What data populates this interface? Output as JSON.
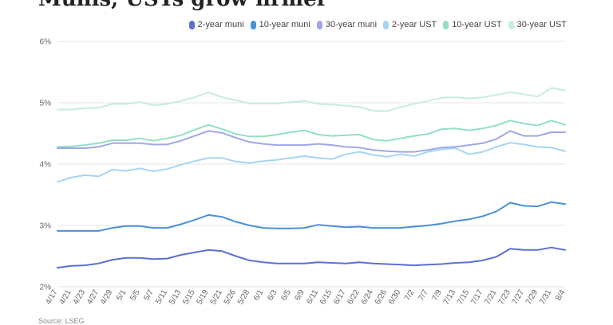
{
  "title": "Munis, USTs grow firmer",
  "source": "Source: LSEG",
  "chart_data": {
    "type": "line",
    "title": "Munis, USTs grow firmer",
    "xlabel": "",
    "ylabel": "",
    "ylim": [
      2,
      6
    ],
    "y_ticks": [
      "2%",
      "3%",
      "4%",
      "5%",
      "6%"
    ],
    "grid": true,
    "legend": "top-right",
    "x_labels": [
      "4/17",
      "4/21",
      "4/23",
      "4/27",
      "4/29",
      "5/1",
      "5/5",
      "5/7",
      "5/11",
      "5/13",
      "5/15",
      "5/19",
      "5/21",
      "5/26",
      "5/28",
      "6/1",
      "6/3",
      "6/5",
      "6/9",
      "6/11",
      "6/15",
      "6/17",
      "6/22",
      "6/24",
      "6/26",
      "6/30",
      "7/2",
      "7/7",
      "7/9",
      "7/13",
      "7/15",
      "7/17",
      "7/21",
      "7/23",
      "7/27",
      "7/29",
      "7/31",
      "8/4"
    ],
    "series": [
      {
        "name": "2-year muni",
        "color": "#5b6fd6",
        "values": [
          2.31,
          2.34,
          2.35,
          2.38,
          2.44,
          2.47,
          2.47,
          2.45,
          2.46,
          2.52,
          2.56,
          2.6,
          2.58,
          2.5,
          2.43,
          2.4,
          2.38,
          2.38,
          2.38,
          2.4,
          2.39,
          2.38,
          2.4,
          2.38,
          2.37,
          2.36,
          2.35,
          2.36,
          2.37,
          2.39,
          2.4,
          2.43,
          2.49,
          2.62,
          2.6,
          2.6,
          2.64,
          2.6
        ]
      },
      {
        "name": "10-year muni",
        "color": "#4a90d9",
        "values": [
          2.91,
          2.91,
          2.91,
          2.91,
          2.96,
          2.99,
          2.99,
          2.96,
          2.96,
          3.02,
          3.09,
          3.17,
          3.14,
          3.06,
          3.0,
          2.96,
          2.95,
          2.95,
          2.96,
          3.01,
          2.99,
          2.97,
          2.98,
          2.96,
          2.96,
          2.96,
          2.98,
          3.0,
          3.03,
          3.07,
          3.1,
          3.15,
          3.23,
          3.37,
          3.32,
          3.31,
          3.38,
          3.35
        ]
      },
      {
        "name": "30-year muni",
        "color": "#9fa8e8",
        "values": [
          4.26,
          4.26,
          4.26,
          4.28,
          4.34,
          4.34,
          4.34,
          4.32,
          4.32,
          4.38,
          4.46,
          4.54,
          4.51,
          4.43,
          4.36,
          4.33,
          4.31,
          4.31,
          4.31,
          4.33,
          4.31,
          4.28,
          4.27,
          4.23,
          4.21,
          4.2,
          4.2,
          4.23,
          4.27,
          4.28,
          4.31,
          4.34,
          4.41,
          4.54,
          4.46,
          4.46,
          4.52,
          4.52
        ]
      },
      {
        "name": "2-year UST",
        "color": "#a8d4f2",
        "values": [
          3.71,
          3.78,
          3.82,
          3.8,
          3.91,
          3.89,
          3.93,
          3.88,
          3.92,
          3.99,
          4.05,
          4.1,
          4.1,
          4.04,
          4.02,
          4.05,
          4.07,
          4.1,
          4.13,
          4.1,
          4.08,
          4.16,
          4.2,
          4.15,
          4.12,
          4.16,
          4.13,
          4.2,
          4.24,
          4.26,
          4.16,
          4.2,
          4.28,
          4.35,
          4.32,
          4.28,
          4.27,
          4.21
        ]
      },
      {
        "name": "10-year UST",
        "color": "#92dfc2",
        "values": [
          4.28,
          4.29,
          4.31,
          4.34,
          4.39,
          4.39,
          4.42,
          4.38,
          4.42,
          4.47,
          4.56,
          4.64,
          4.57,
          4.49,
          4.45,
          4.45,
          4.48,
          4.52,
          4.55,
          4.48,
          4.46,
          4.47,
          4.48,
          4.4,
          4.38,
          4.42,
          4.46,
          4.49,
          4.57,
          4.58,
          4.55,
          4.58,
          4.63,
          4.71,
          4.66,
          4.63,
          4.71,
          4.64
        ]
      },
      {
        "name": "30-year UST",
        "color": "#c8ecdc",
        "values": [
          4.89,
          4.89,
          4.91,
          4.92,
          4.98,
          4.98,
          5.01,
          4.96,
          4.98,
          5.03,
          5.09,
          5.17,
          5.09,
          5.04,
          4.99,
          4.99,
          4.99,
          5.01,
          5.03,
          4.98,
          4.97,
          4.95,
          4.93,
          4.87,
          4.86,
          4.93,
          4.98,
          5.03,
          5.08,
          5.09,
          5.07,
          5.09,
          5.13,
          5.17,
          5.14,
          5.1,
          5.24,
          5.2
        ]
      }
    ]
  }
}
